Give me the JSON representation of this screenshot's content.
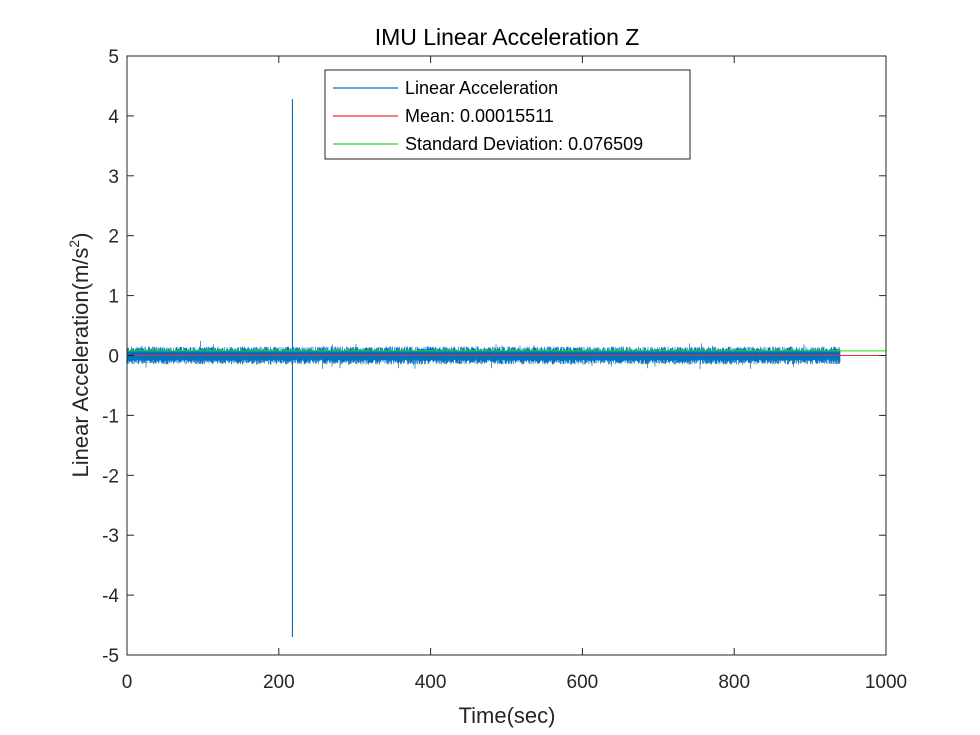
{
  "chart_data": {
    "type": "line",
    "title": "IMU Linear Acceleration Z",
    "xlabel": "Time(sec)",
    "ylabel_main": "Linear Acceleration(m/s",
    "ylabel_sup": "2",
    "ylabel_close": ")",
    "xlim": [
      0,
      1000
    ],
    "ylim": [
      -5,
      5
    ],
    "xticks": [
      0,
      200,
      400,
      600,
      800,
      1000
    ],
    "xtick_labels": [
      "0",
      "200",
      "400",
      "600",
      "800",
      "1000"
    ],
    "yticks": [
      -5,
      -4,
      -3,
      -2,
      -1,
      0,
      1,
      2,
      3,
      4,
      5
    ],
    "ytick_labels": [
      "-5",
      "-4",
      "-3",
      "-2",
      "-1",
      "0",
      "1",
      "2",
      "3",
      "4",
      "5"
    ],
    "grid": false,
    "legend_position": "top-center",
    "series": [
      {
        "name": "Linear Acceleration",
        "color": "#0072BD",
        "x_range": [
          0,
          940
        ],
        "typical_band": [
          -0.15,
          0.15
        ],
        "min": -4.7,
        "max": 4.28,
        "spike_x": 218
      },
      {
        "name": "Mean: 0.00015511",
        "color": "#E8323C",
        "x": [
          0,
          1000
        ],
        "y": [
          0.00015511,
          0.00015511
        ]
      },
      {
        "name": "Standard Deviation: 0.076509",
        "color": "#22DD22",
        "x": [
          0,
          1000
        ],
        "y": [
          0.076509,
          0.076509
        ]
      }
    ]
  }
}
